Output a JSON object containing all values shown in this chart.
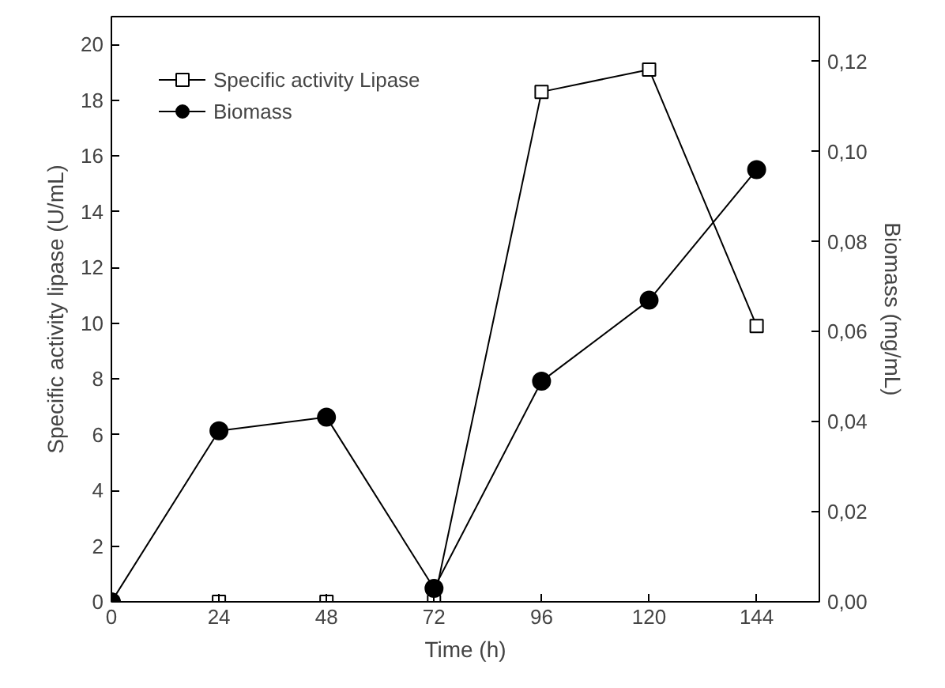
{
  "chart_data": {
    "type": "line",
    "xlabel": "Time (h)",
    "ylabel": "Specific activity lipase (U/mL)",
    "y2label": "Biomass (mg/mL)",
    "xlim": [
      0,
      158
    ],
    "xticks": [
      0,
      24,
      48,
      72,
      96,
      120,
      144
    ],
    "ylim": [
      0,
      21
    ],
    "yticks": [
      0,
      2,
      4,
      6,
      8,
      10,
      12,
      14,
      16,
      18,
      20
    ],
    "y2lim": [
      0,
      0.13
    ],
    "y2ticks": [
      {
        "value": 0,
        "label": "0,00"
      },
      {
        "value": 0.02,
        "label": "0,02"
      },
      {
        "value": 0.04,
        "label": "0,04"
      },
      {
        "value": 0.06,
        "label": "0,06"
      },
      {
        "value": 0.08,
        "label": "0,08"
      },
      {
        "value": 0.1,
        "label": "0,10"
      },
      {
        "value": 0.12,
        "label": "0,12"
      }
    ],
    "grid": false,
    "legend": "top left",
    "line_style": "solid",
    "series": [
      {
        "name": "Specific activity Lipase",
        "color": "#000000",
        "marker": "square",
        "x": [
          24,
          48,
          72,
          96,
          120,
          144
        ],
        "values": [
          0,
          0,
          0,
          18.3,
          19.1,
          9.9
        ]
      },
      {
        "name": "Biomass",
        "color": "#000000",
        "marker": "circle",
        "axis": "y2",
        "x": [
          0,
          24,
          48,
          72,
          96,
          120,
          144
        ],
        "values": [
          0,
          0.038,
          0.041,
          0.003,
          0.049,
          0.067,
          0.096
        ]
      }
    ]
  }
}
